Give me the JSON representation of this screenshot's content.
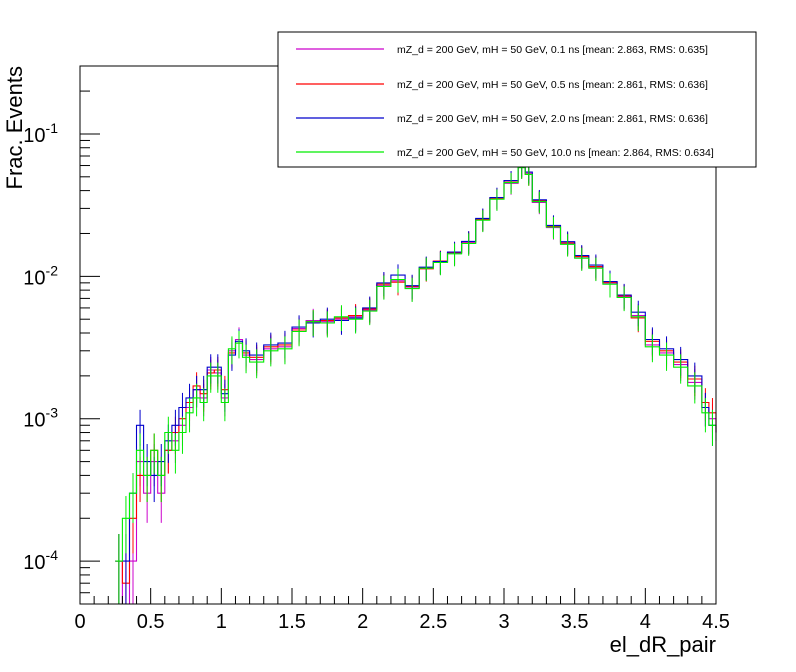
{
  "chart_data": {
    "type": "line",
    "style": "step-histogram-with-error-bars",
    "xlabel": "el_dR_pair",
    "ylabel": "Frac. Events",
    "xlim": [
      0,
      4.5
    ],
    "ylim": [
      5e-05,
      0.3
    ],
    "yscale": "log",
    "x_ticks": [
      "0",
      "0.5",
      "1",
      "1.5",
      "2",
      "2.5",
      "3",
      "3.5",
      "4",
      "4.5"
    ],
    "y_ticks": [
      {
        "base": "10",
        "exp": "-4",
        "value": 0.0001
      },
      {
        "base": "10",
        "exp": "-3",
        "value": 0.001
      },
      {
        "base": "10",
        "exp": "-2",
        "value": 0.01
      },
      {
        "base": "10",
        "exp": "-1",
        "value": 0.1
      }
    ],
    "legend_position": "top-right",
    "series": [
      {
        "name": "mZ_d = 200 GeV, mH = 50 GeV, 0.1 ns [mean: 2.863, RMS: 0.635]",
        "color": "#cc00cc",
        "x": [
          0.25,
          0.3,
          0.35,
          0.4,
          0.45,
          0.5,
          0.55,
          0.6,
          0.65,
          0.7,
          0.75,
          0.8,
          0.85,
          0.9,
          0.95,
          1.0,
          1.05,
          1.1,
          1.15,
          1.2,
          1.3,
          1.4,
          1.5,
          1.6,
          1.7,
          1.8,
          1.9,
          2.0,
          2.1,
          2.2,
          2.3,
          2.4,
          2.5,
          2.6,
          2.7,
          2.8,
          2.9,
          3.0,
          3.1,
          3.15,
          3.2,
          3.3,
          3.4,
          3.5,
          3.6,
          3.7,
          3.8,
          3.9,
          4.0,
          4.1,
          4.2,
          4.3,
          4.4,
          4.45,
          4.5
        ],
        "values": [
          0.0001,
          5e-05,
          0.0001,
          0.0005,
          0.0003,
          0.0005,
          0.0003,
          0.0006,
          0.0007,
          0.0009,
          0.0012,
          0.0016,
          0.0014,
          0.0022,
          0.0021,
          0.0014,
          0.003,
          0.0036,
          0.0028,
          0.0026,
          0.0031,
          0.0032,
          0.0043,
          0.0049,
          0.0048,
          0.005,
          0.0052,
          0.0058,
          0.0086,
          0.0093,
          0.0083,
          0.0115,
          0.0126,
          0.0145,
          0.0172,
          0.025,
          0.035,
          0.045,
          0.058,
          0.053,
          0.033,
          0.022,
          0.017,
          0.0135,
          0.0115,
          0.009,
          0.0072,
          0.0053,
          0.0033,
          0.0029,
          0.0024,
          0.0018,
          0.0012,
          0.001,
          0.0008
        ]
      },
      {
        "name": "mZ_d = 200 GeV, mH = 50 GeV, 0.5 ns [mean: 2.861, RMS: 0.636]",
        "color": "#ff0000",
        "x": [
          0.25,
          0.3,
          0.35,
          0.4,
          0.45,
          0.5,
          0.55,
          0.6,
          0.65,
          0.7,
          0.75,
          0.8,
          0.85,
          0.9,
          0.95,
          1.0,
          1.05,
          1.1,
          1.15,
          1.2,
          1.3,
          1.4,
          1.5,
          1.6,
          1.7,
          1.8,
          1.9,
          2.0,
          2.1,
          2.2,
          2.3,
          2.4,
          2.5,
          2.6,
          2.7,
          2.8,
          2.9,
          3.0,
          3.1,
          3.15,
          3.2,
          3.3,
          3.4,
          3.5,
          3.6,
          3.7,
          3.8,
          3.9,
          4.0,
          4.1,
          4.2,
          4.3,
          4.4,
          4.45,
          4.5
        ],
        "values": [
          0.0001,
          7e-05,
          0.0002,
          0.0004,
          0.0004,
          0.0006,
          0.0004,
          0.0006,
          0.0008,
          0.001,
          0.0013,
          0.0017,
          0.0015,
          0.0021,
          0.0022,
          0.0016,
          0.0029,
          0.0034,
          0.0029,
          0.0027,
          0.0032,
          0.0033,
          0.0042,
          0.0048,
          0.0049,
          0.0051,
          0.0053,
          0.0059,
          0.0088,
          0.0091,
          0.0085,
          0.0113,
          0.0128,
          0.0147,
          0.0175,
          0.0252,
          0.0355,
          0.046,
          0.059,
          0.052,
          0.034,
          0.0225,
          0.0172,
          0.0138,
          0.0117,
          0.0091,
          0.0073,
          0.0051,
          0.0035,
          0.003,
          0.0025,
          0.0019,
          0.0013,
          0.0011,
          0.0008
        ]
      },
      {
        "name": "mZ_d = 200 GeV, mH = 50 GeV, 2.0 ns [mean: 2.861, RMS: 0.636]",
        "color": "#0000cc",
        "x": [
          0.25,
          0.3,
          0.35,
          0.4,
          0.45,
          0.5,
          0.55,
          0.6,
          0.65,
          0.7,
          0.75,
          0.8,
          0.85,
          0.9,
          0.95,
          1.0,
          1.05,
          1.1,
          1.15,
          1.2,
          1.3,
          1.4,
          1.5,
          1.6,
          1.7,
          1.8,
          1.9,
          2.0,
          2.1,
          2.2,
          2.3,
          2.4,
          2.5,
          2.6,
          2.7,
          2.8,
          2.9,
          3.0,
          3.1,
          3.15,
          3.2,
          3.3,
          3.4,
          3.5,
          3.6,
          3.7,
          3.8,
          3.9,
          4.0,
          4.1,
          4.2,
          4.3,
          4.4,
          4.45,
          4.5
        ],
        "values": [
          0.0001,
          0.0001,
          0.0003,
          0.0009,
          0.0005,
          0.0004,
          0.0005,
          0.0007,
          0.0009,
          0.0012,
          0.0014,
          0.0016,
          0.0016,
          0.0023,
          0.0023,
          0.0015,
          0.0028,
          0.0035,
          0.003,
          0.0028,
          0.0033,
          0.0034,
          0.0044,
          0.0047,
          0.005,
          0.0049,
          0.0051,
          0.006,
          0.009,
          0.0102,
          0.0086,
          0.0116,
          0.0127,
          0.0148,
          0.0176,
          0.0255,
          0.0358,
          0.047,
          0.06,
          0.054,
          0.0345,
          0.0228,
          0.0175,
          0.014,
          0.012,
          0.0092,
          0.0074,
          0.0056,
          0.0036,
          0.0031,
          0.0026,
          0.002,
          0.0012,
          0.0009,
          0.0008
        ]
      },
      {
        "name": "mZ_d = 200 GeV, mH = 50 GeV, 10.0 ns [mean: 2.864, RMS: 0.634]",
        "color": "#00ee00",
        "x": [
          0.25,
          0.3,
          0.35,
          0.4,
          0.45,
          0.5,
          0.55,
          0.6,
          0.65,
          0.7,
          0.75,
          0.8,
          0.85,
          0.9,
          0.95,
          1.0,
          1.05,
          1.1,
          1.15,
          1.2,
          1.3,
          1.4,
          1.5,
          1.6,
          1.7,
          1.8,
          1.9,
          2.0,
          2.1,
          2.2,
          2.3,
          2.4,
          2.5,
          2.6,
          2.7,
          2.8,
          2.9,
          3.0,
          3.1,
          3.15,
          3.2,
          3.3,
          3.4,
          3.5,
          3.6,
          3.7,
          3.8,
          3.9,
          4.0,
          4.1,
          4.2,
          4.3,
          4.4,
          4.45,
          4.5
        ],
        "values": [
          0.0001,
          0.0002,
          0.0003,
          0.0006,
          0.0004,
          0.0006,
          0.0004,
          0.0008,
          0.0006,
          0.0008,
          0.0011,
          0.0014,
          0.0013,
          0.002,
          0.002,
          0.0013,
          0.0031,
          0.0034,
          0.0027,
          0.0025,
          0.003,
          0.0031,
          0.0041,
          0.0048,
          0.0047,
          0.0052,
          0.005,
          0.0057,
          0.0085,
          0.0095,
          0.0082,
          0.0114,
          0.0125,
          0.0144,
          0.017,
          0.0248,
          0.0348,
          0.0455,
          0.058,
          0.052,
          0.0335,
          0.0222,
          0.0168,
          0.0134,
          0.0114,
          0.0088,
          0.0071,
          0.0052,
          0.0032,
          0.0028,
          0.0023,
          0.0017,
          0.0011,
          0.0009,
          0.0007
        ]
      }
    ]
  }
}
